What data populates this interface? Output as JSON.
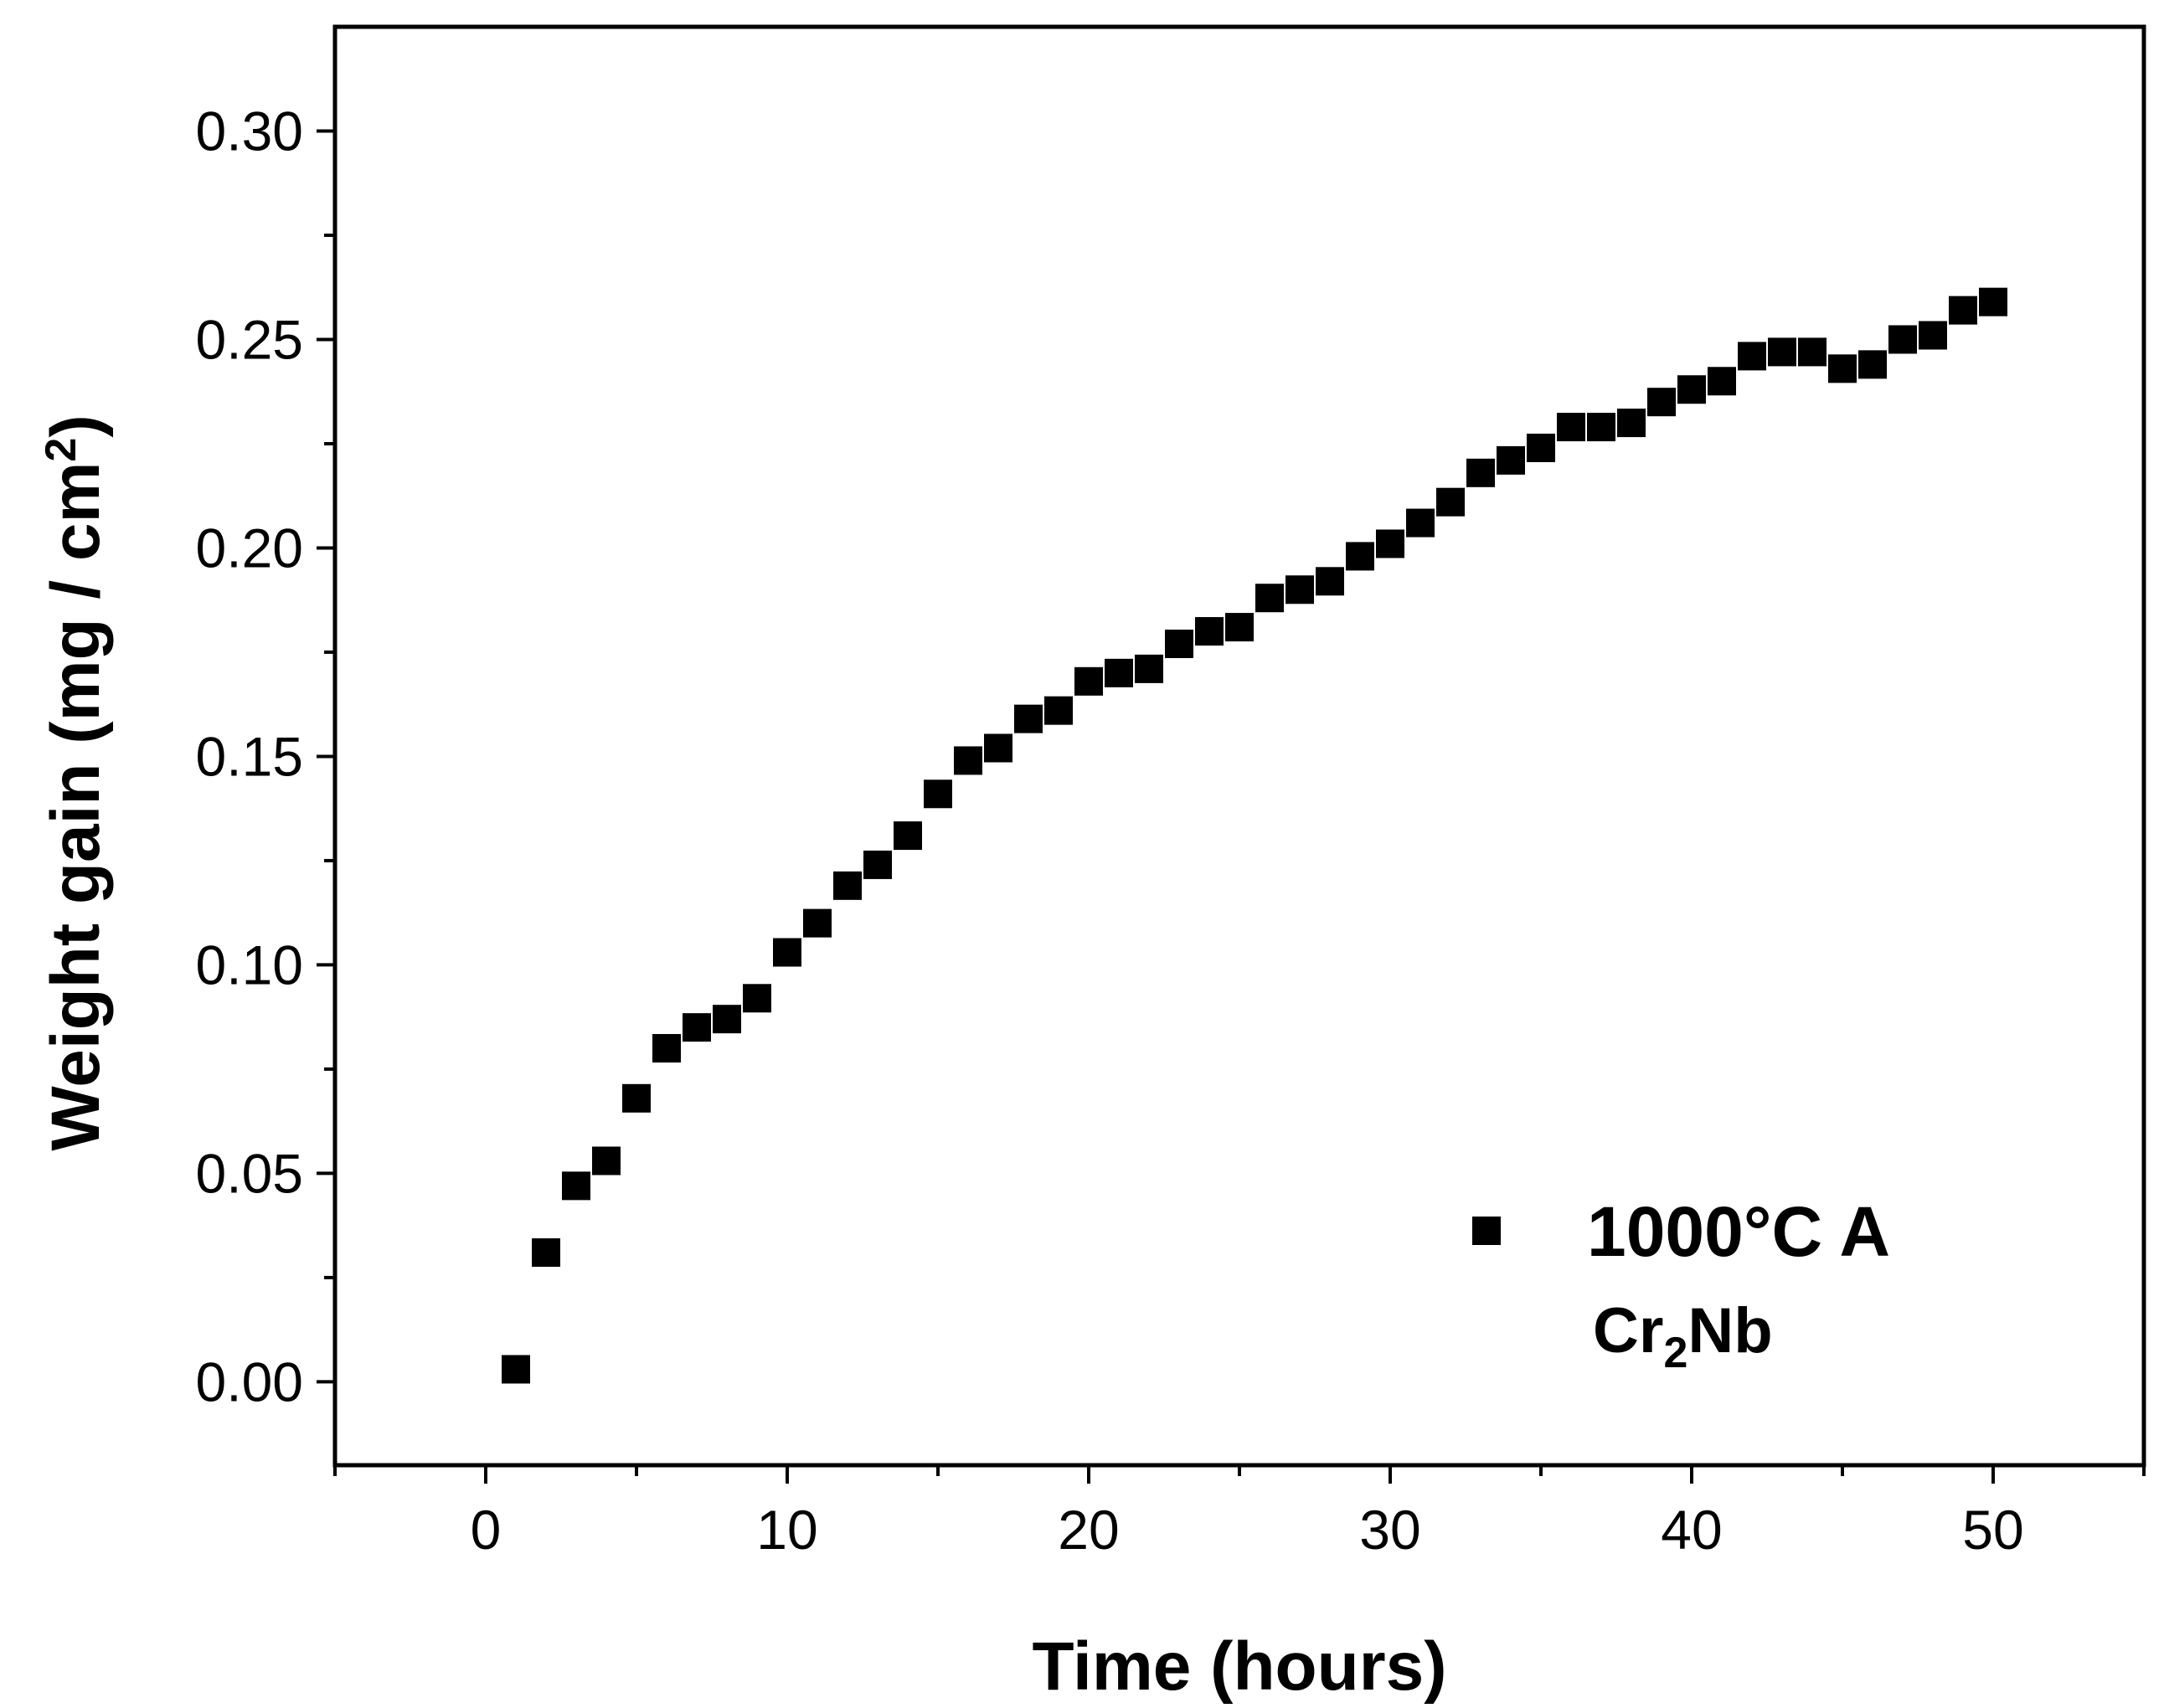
{
  "chart_data": {
    "type": "scatter",
    "title": "",
    "xlabel": "Time (hours)",
    "ylabel_main": "Weight gain (mg / cm",
    "ylabel_sup": "2",
    "ylabel_close": ")",
    "xlim": [
      -5,
      55
    ],
    "ylim": [
      -0.02,
      0.325
    ],
    "xticks": [
      0,
      10,
      20,
      30,
      40,
      50
    ],
    "xtick_labels": [
      "0",
      "10",
      "20",
      "30",
      "40",
      "50"
    ],
    "yticks": [
      0.0,
      0.05,
      0.1,
      0.15,
      0.2,
      0.25,
      0.3
    ],
    "ytick_labels": [
      "0.00",
      "0.05",
      "0.10",
      "0.15",
      "0.20",
      "0.25",
      "0.30"
    ],
    "grid": false,
    "legend_position": "bottom-right",
    "series": [
      {
        "name": "1000°C  A",
        "marker": "square",
        "color": "#000000",
        "x": [
          1,
          2,
          3,
          4,
          5,
          6,
          7,
          8,
          9,
          10,
          11,
          12,
          13,
          14,
          15,
          16,
          17,
          18,
          19,
          20,
          21,
          22,
          23,
          24,
          25,
          26,
          27,
          28,
          29,
          30,
          31,
          32,
          33,
          34,
          35,
          36,
          37,
          38,
          39,
          40,
          41,
          42,
          43,
          44,
          45,
          46,
          47,
          48,
          49,
          50
        ],
        "y": [
          0.003,
          0.031,
          0.047,
          0.053,
          0.068,
          0.08,
          0.085,
          0.087,
          0.092,
          0.103,
          0.11,
          0.119,
          0.124,
          0.131,
          0.141,
          0.149,
          0.152,
          0.159,
          0.161,
          0.168,
          0.17,
          0.171,
          0.177,
          0.18,
          0.181,
          0.188,
          0.19,
          0.192,
          0.198,
          0.201,
          0.206,
          0.211,
          0.218,
          0.221,
          0.224,
          0.229,
          0.229,
          0.23,
          0.235,
          0.238,
          0.24,
          0.246,
          0.247,
          0.247,
          0.243,
          0.244,
          0.25,
          0.251,
          0.257,
          0.259
        ]
      }
    ],
    "annotation_main": "Cr",
    "annotation_sub": "2",
    "annotation_tail": "Nb"
  }
}
